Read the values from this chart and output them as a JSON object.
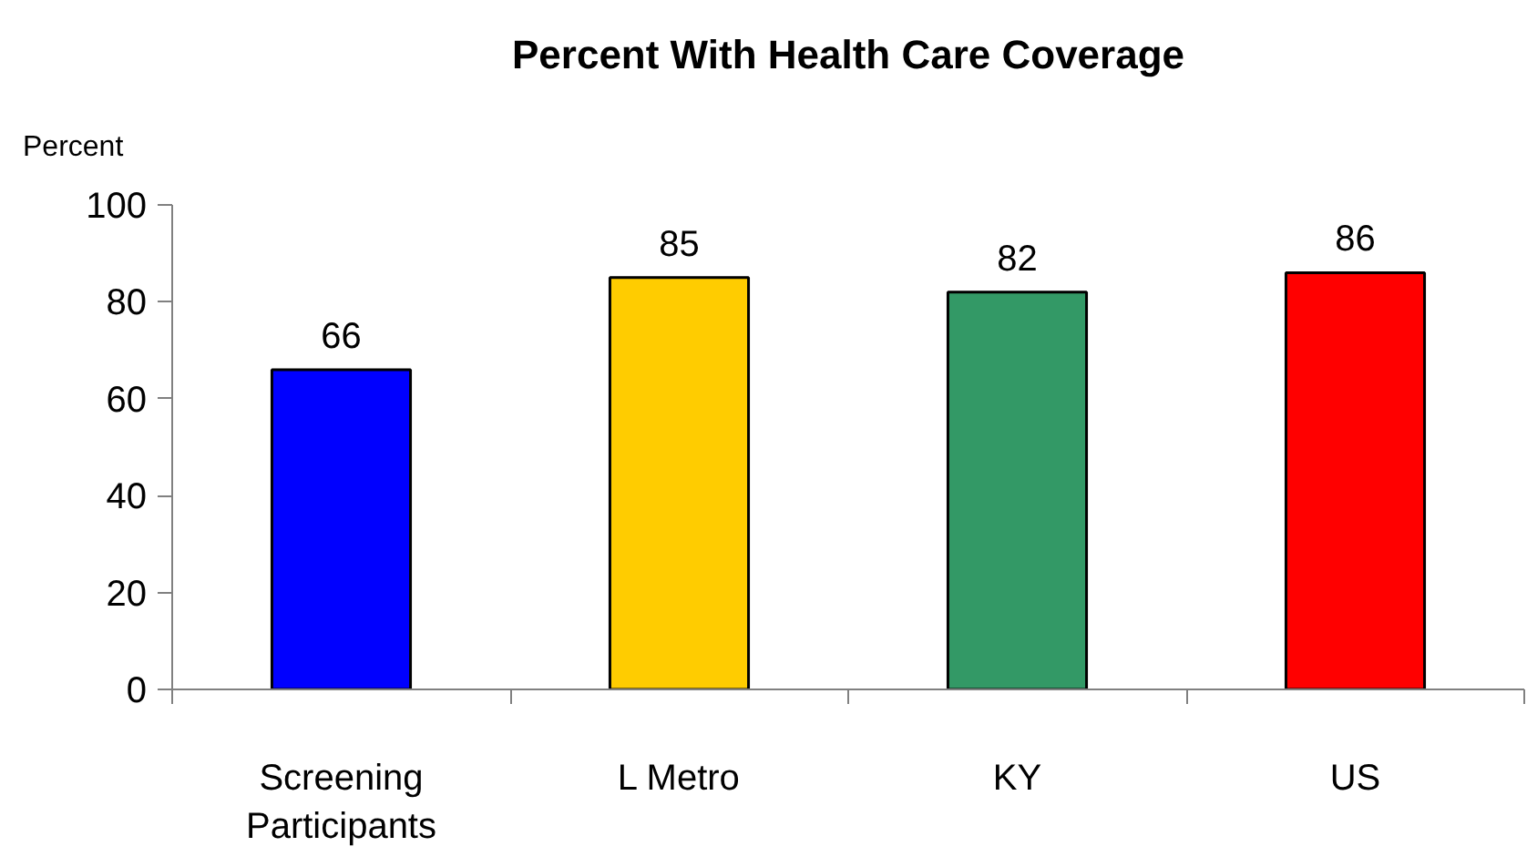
{
  "chart_data": {
    "type": "bar",
    "title": "Percent With Health Care Coverage",
    "ylabel": "Percent",
    "categories": [
      "Screening Participants",
      "L Metro",
      "KY",
      "US"
    ],
    "values": [
      66,
      85,
      82,
      86
    ],
    "colors": [
      "#0000ff",
      "#ffcc00",
      "#339966",
      "#ff0000"
    ],
    "ylim": [
      0,
      100
    ],
    "yticks": [
      0,
      20,
      40,
      60,
      80,
      100
    ],
    "data_labels": true,
    "grid": false
  }
}
